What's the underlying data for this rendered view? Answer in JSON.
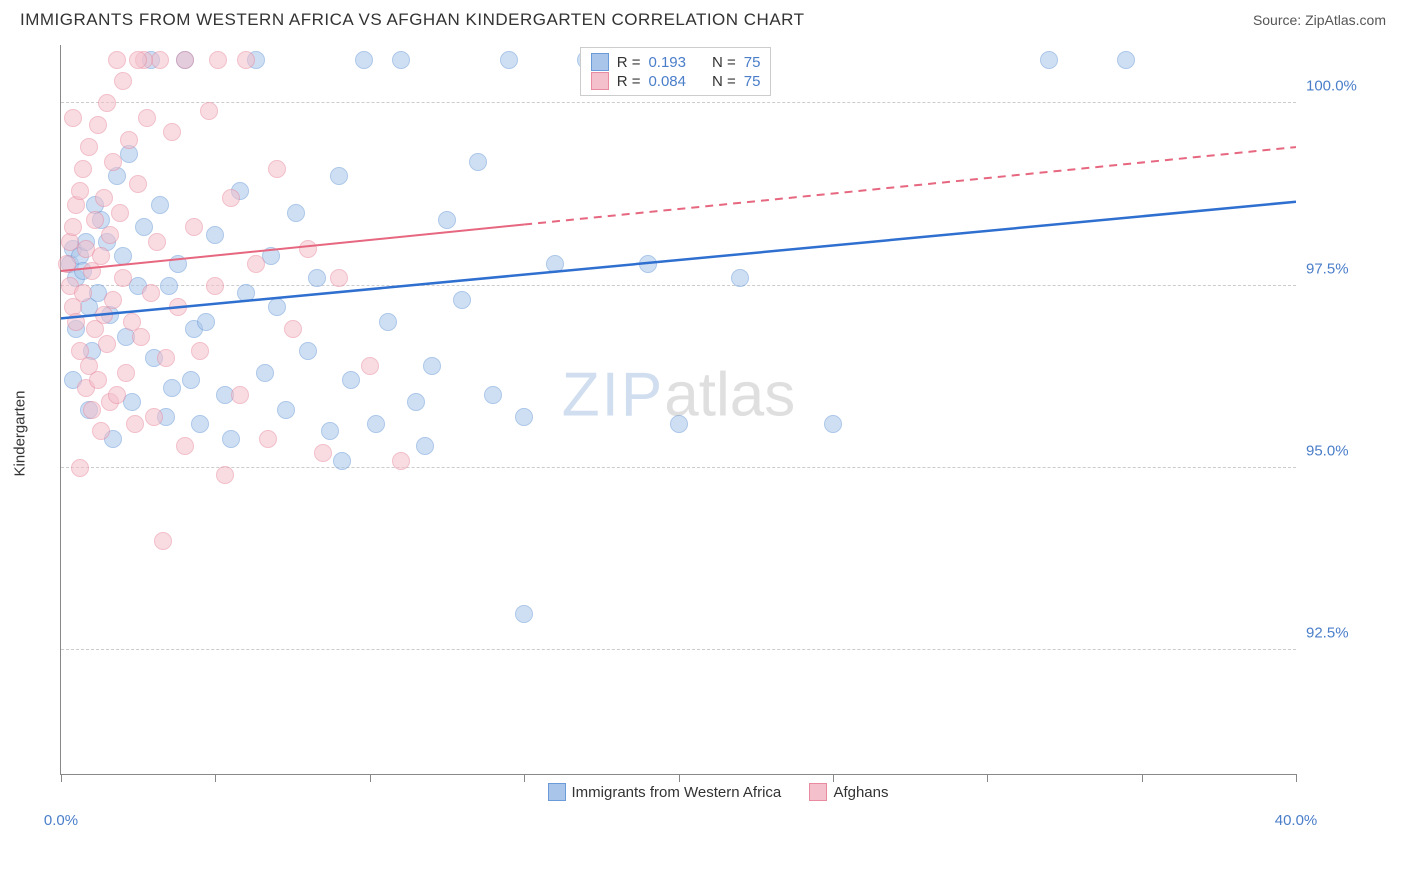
{
  "title": "IMMIGRANTS FROM WESTERN AFRICA VS AFGHAN KINDERGARTEN CORRELATION CHART",
  "source": "Source: ZipAtlas.com",
  "y_axis_label": "Kindergarten",
  "watermark": {
    "part1": "ZIP",
    "part2": "atlas"
  },
  "chart": {
    "type": "scatter",
    "background_color": "#ffffff",
    "grid_color": "#cccccc",
    "axis_color": "#888888",
    "tick_label_color": "#4a7ec9",
    "tick_fontsize": 15,
    "dot_radius": 9,
    "dot_opacity": 0.55,
    "xlim": [
      0.0,
      40.0
    ],
    "ylim": [
      90.8,
      100.8
    ],
    "x_ticks": [
      0.0,
      40.0
    ],
    "x_tick_labels": [
      "0.0%",
      "40.0%"
    ],
    "x_minor_ticks": [
      5,
      10,
      15,
      20,
      25,
      30,
      35
    ],
    "y_ticks": [
      92.5,
      95.0,
      97.5,
      100.0
    ],
    "y_tick_labels": [
      "92.5%",
      "95.0%",
      "97.5%",
      "100.0%"
    ],
    "series": [
      {
        "name": "Immigrants from Western Africa",
        "color_fill": "#a9c6ea",
        "color_stroke": "#6a9bd8",
        "trend_color": "#2e6fd0",
        "trend_width": 2.5,
        "trend_solid_until_x": 40.0,
        "trend": {
          "x1": 0.0,
          "y1": 97.05,
          "x2": 40.0,
          "y2": 98.65
        },
        "R": "0.193",
        "N": "75",
        "points": [
          [
            0.3,
            97.8
          ],
          [
            0.4,
            98.0
          ],
          [
            0.5,
            97.6
          ],
          [
            0.6,
            97.9
          ],
          [
            0.7,
            97.7
          ],
          [
            0.8,
            98.1
          ],
          [
            0.5,
            96.9
          ],
          [
            0.9,
            97.2
          ],
          [
            1.0,
            96.6
          ],
          [
            1.2,
            97.4
          ],
          [
            1.3,
            98.4
          ],
          [
            1.5,
            98.1
          ],
          [
            1.6,
            97.1
          ],
          [
            1.8,
            99.0
          ],
          [
            2.0,
            97.9
          ],
          [
            2.1,
            96.8
          ],
          [
            2.3,
            95.9
          ],
          [
            2.5,
            97.5
          ],
          [
            2.7,
            98.3
          ],
          [
            2.9,
            100.6
          ],
          [
            3.0,
            96.5
          ],
          [
            3.2,
            98.6
          ],
          [
            3.4,
            95.7
          ],
          [
            3.6,
            96.1
          ],
          [
            3.8,
            97.8
          ],
          [
            4.0,
            100.6
          ],
          [
            4.3,
            96.9
          ],
          [
            4.5,
            95.6
          ],
          [
            4.7,
            97.0
          ],
          [
            5.0,
            98.2
          ],
          [
            5.3,
            96.0
          ],
          [
            5.5,
            95.4
          ],
          [
            5.8,
            98.8
          ],
          [
            6.0,
            97.4
          ],
          [
            6.3,
            100.6
          ],
          [
            6.6,
            96.3
          ],
          [
            7.0,
            97.2
          ],
          [
            7.3,
            95.8
          ],
          [
            7.6,
            98.5
          ],
          [
            8.0,
            96.6
          ],
          [
            8.3,
            97.6
          ],
          [
            8.7,
            95.5
          ],
          [
            9.0,
            99.0
          ],
          [
            9.4,
            96.2
          ],
          [
            9.8,
            100.6
          ],
          [
            10.2,
            95.6
          ],
          [
            10.6,
            97.0
          ],
          [
            11.0,
            100.6
          ],
          [
            11.5,
            95.9
          ],
          [
            12.0,
            96.4
          ],
          [
            12.5,
            98.4
          ],
          [
            13.0,
            97.3
          ],
          [
            13.5,
            99.2
          ],
          [
            14.0,
            96.0
          ],
          [
            14.5,
            100.6
          ],
          [
            15.0,
            95.7
          ],
          [
            15.0,
            93.0
          ],
          [
            16.0,
            97.8
          ],
          [
            17.0,
            100.6
          ],
          [
            19.0,
            97.8
          ],
          [
            20.0,
            95.6
          ],
          [
            22.0,
            97.6
          ],
          [
            25.0,
            95.6
          ],
          [
            32.0,
            100.6
          ],
          [
            34.5,
            100.6
          ],
          [
            3.5,
            97.5
          ],
          [
            4.2,
            96.2
          ],
          [
            6.8,
            97.9
          ],
          [
            9.1,
            95.1
          ],
          [
            11.8,
            95.3
          ],
          [
            1.1,
            98.6
          ],
          [
            2.2,
            99.3
          ],
          [
            0.4,
            96.2
          ],
          [
            0.9,
            95.8
          ],
          [
            1.7,
            95.4
          ]
        ]
      },
      {
        "name": "Afghans",
        "color_fill": "#f4c0cb",
        "color_stroke": "#e88ba0",
        "trend_color": "#e6677f",
        "trend_width": 2,
        "trend_solid_until_x": 15.0,
        "trend": {
          "x1": 0.0,
          "y1": 97.7,
          "x2": 40.0,
          "y2": 99.4
        },
        "R": "0.084",
        "N": "75",
        "points": [
          [
            0.2,
            97.8
          ],
          [
            0.3,
            98.1
          ],
          [
            0.3,
            97.5
          ],
          [
            0.4,
            98.3
          ],
          [
            0.4,
            97.2
          ],
          [
            0.5,
            98.6
          ],
          [
            0.5,
            97.0
          ],
          [
            0.6,
            98.8
          ],
          [
            0.6,
            96.6
          ],
          [
            0.7,
            99.1
          ],
          [
            0.7,
            97.4
          ],
          [
            0.8,
            96.1
          ],
          [
            0.8,
            98.0
          ],
          [
            0.9,
            99.4
          ],
          [
            0.9,
            96.4
          ],
          [
            1.0,
            97.7
          ],
          [
            1.0,
            95.8
          ],
          [
            1.1,
            98.4
          ],
          [
            1.1,
            96.9
          ],
          [
            1.2,
            99.7
          ],
          [
            1.2,
            96.2
          ],
          [
            1.3,
            97.9
          ],
          [
            1.3,
            95.5
          ],
          [
            1.4,
            98.7
          ],
          [
            1.4,
            97.1
          ],
          [
            1.5,
            100.0
          ],
          [
            1.5,
            96.7
          ],
          [
            1.6,
            98.2
          ],
          [
            1.6,
            95.9
          ],
          [
            1.7,
            99.2
          ],
          [
            1.7,
            97.3
          ],
          [
            1.8,
            96.0
          ],
          [
            1.9,
            98.5
          ],
          [
            2.0,
            97.6
          ],
          [
            2.0,
            100.3
          ],
          [
            2.1,
            96.3
          ],
          [
            2.2,
            99.5
          ],
          [
            2.3,
            97.0
          ],
          [
            2.4,
            95.6
          ],
          [
            2.5,
            98.9
          ],
          [
            2.6,
            96.8
          ],
          [
            2.8,
            99.8
          ],
          [
            2.9,
            97.4
          ],
          [
            3.0,
            95.7
          ],
          [
            3.1,
            98.1
          ],
          [
            3.2,
            100.6
          ],
          [
            3.4,
            96.5
          ],
          [
            3.6,
            99.6
          ],
          [
            3.8,
            97.2
          ],
          [
            4.0,
            95.3
          ],
          [
            4.0,
            100.6
          ],
          [
            4.3,
            98.3
          ],
          [
            4.5,
            96.6
          ],
          [
            4.8,
            99.9
          ],
          [
            5.0,
            97.5
          ],
          [
            5.3,
            94.9
          ],
          [
            5.5,
            98.7
          ],
          [
            5.8,
            96.0
          ],
          [
            6.0,
            100.6
          ],
          [
            6.3,
            97.8
          ],
          [
            6.7,
            95.4
          ],
          [
            7.0,
            99.1
          ],
          [
            7.5,
            96.9
          ],
          [
            8.0,
            98.0
          ],
          [
            8.5,
            95.2
          ],
          [
            9.0,
            97.6
          ],
          [
            10.0,
            96.4
          ],
          [
            11.0,
            95.1
          ],
          [
            2.7,
            100.6
          ],
          [
            1.8,
            100.6
          ],
          [
            3.3,
            94.0
          ],
          [
            0.4,
            99.8
          ],
          [
            2.5,
            100.6
          ],
          [
            5.1,
            100.6
          ],
          [
            0.6,
            95.0
          ]
        ]
      }
    ]
  },
  "legend_top": {
    "R_label": "R = ",
    "N_label": "N = "
  },
  "legend_bottom": [
    {
      "label": "Immigrants from Western Africa",
      "fill": "#a9c6ea",
      "stroke": "#6a9bd8"
    },
    {
      "label": "Afghans",
      "fill": "#f4c0cb",
      "stroke": "#e88ba0"
    }
  ]
}
